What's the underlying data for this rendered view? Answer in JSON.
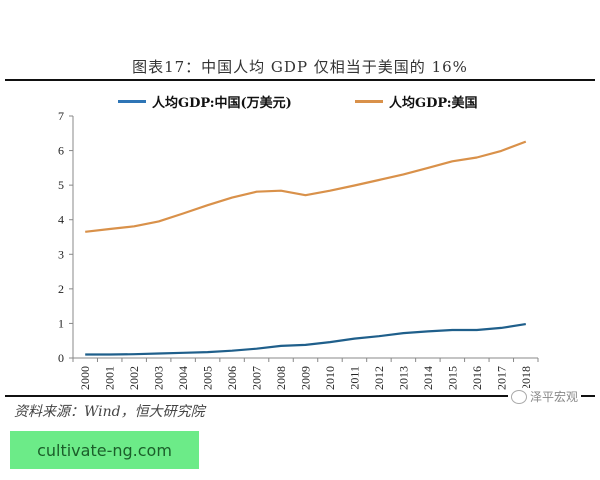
{
  "title": "图表17：中国人均 GDP 仅相当于美国的 16%",
  "legend": [
    {
      "label": "人均GDP:中国(万美元)",
      "color": "#2e75b6"
    },
    {
      "label": "人均GDP:美国",
      "color": "#d9914a"
    }
  ],
  "source": "资料来源：Wind，恒大研究院",
  "watermark": "泽平宏观",
  "ad": {
    "text": "cultivate-ng.com",
    "bg": "#6ceb88"
  },
  "chart_data": {
    "type": "line",
    "title": "图表17：中国人均 GDP 仅相当于美国的 16%",
    "xlabel": "",
    "ylabel": "",
    "ylim": [
      0,
      7
    ],
    "yticks": [
      0,
      1,
      2,
      3,
      4,
      5,
      6,
      7
    ],
    "grid": false,
    "legend_position": "top",
    "categories": [
      "2000",
      "2001",
      "2002",
      "2003",
      "2004",
      "2005",
      "2006",
      "2007",
      "2008",
      "2009",
      "2010",
      "2011",
      "2012",
      "2013",
      "2014",
      "2015",
      "2016",
      "2017",
      "2018"
    ],
    "series": [
      {
        "name": "人均GDP:中国(万美元)",
        "color": "#1f5f8b",
        "values": [
          0.1,
          0.1,
          0.11,
          0.13,
          0.15,
          0.17,
          0.21,
          0.27,
          0.35,
          0.38,
          0.46,
          0.56,
          0.63,
          0.72,
          0.77,
          0.81,
          0.81,
          0.87,
          0.98
        ]
      },
      {
        "name": "人均GDP:美国",
        "color": "#d9914a",
        "values": [
          3.65,
          3.73,
          3.81,
          3.95,
          4.18,
          4.42,
          4.64,
          4.81,
          4.84,
          4.71,
          4.84,
          4.99,
          5.15,
          5.31,
          5.5,
          5.69,
          5.8,
          5.99,
          6.26
        ]
      }
    ]
  }
}
